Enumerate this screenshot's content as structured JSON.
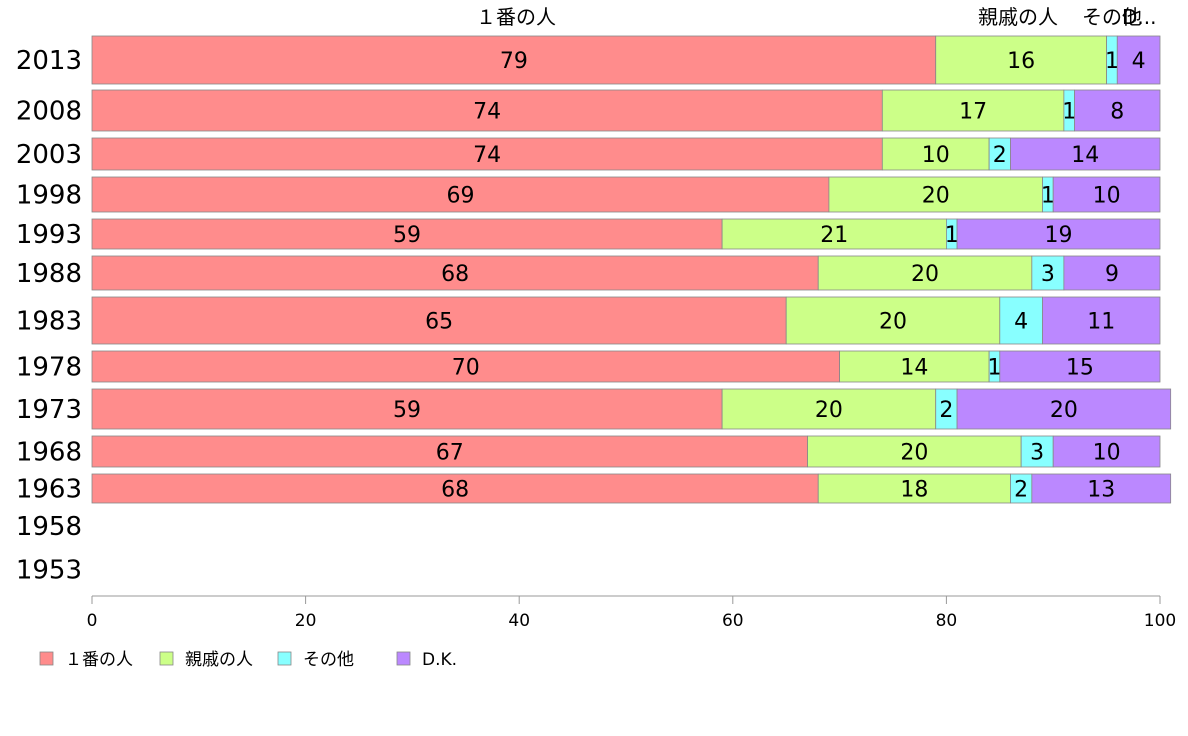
{
  "chart_data": {
    "type": "bar",
    "orientation": "horizontal",
    "stacked": true,
    "categories": [
      "2013",
      "2008",
      "2003",
      "1998",
      "1993",
      "1988",
      "1983",
      "1978",
      "1973",
      "1968",
      "1963",
      "1958",
      "1953"
    ],
    "series": [
      {
        "name": "１番の人",
        "color": "#ff8c8c",
        "values": [
          79,
          74,
          74,
          69,
          59,
          68,
          65,
          70,
          59,
          67,
          68,
          null,
          null
        ]
      },
      {
        "name": "親戚の人",
        "color": "#ccff88",
        "values": [
          16,
          17,
          10,
          20,
          21,
          20,
          20,
          14,
          20,
          20,
          18,
          null,
          null
        ]
      },
      {
        "name": "その他",
        "color": "#88ffff",
        "values": [
          1,
          1,
          2,
          1,
          1,
          3,
          4,
          1,
          2,
          3,
          2,
          null,
          null
        ]
      },
      {
        "name": "D.K.",
        "color": "#bb88ff",
        "values": [
          4,
          8,
          14,
          10,
          19,
          9,
          11,
          15,
          20,
          10,
          13,
          null,
          null
        ]
      }
    ],
    "top_labels": [
      "１番の人",
      "親戚の人",
      "その他",
      "D..."
    ],
    "xlim": [
      0,
      100
    ],
    "xticks": [
      "0",
      "20",
      "40",
      "60",
      "80",
      "100"
    ],
    "grid": false,
    "legend_position": "bottom-left"
  }
}
